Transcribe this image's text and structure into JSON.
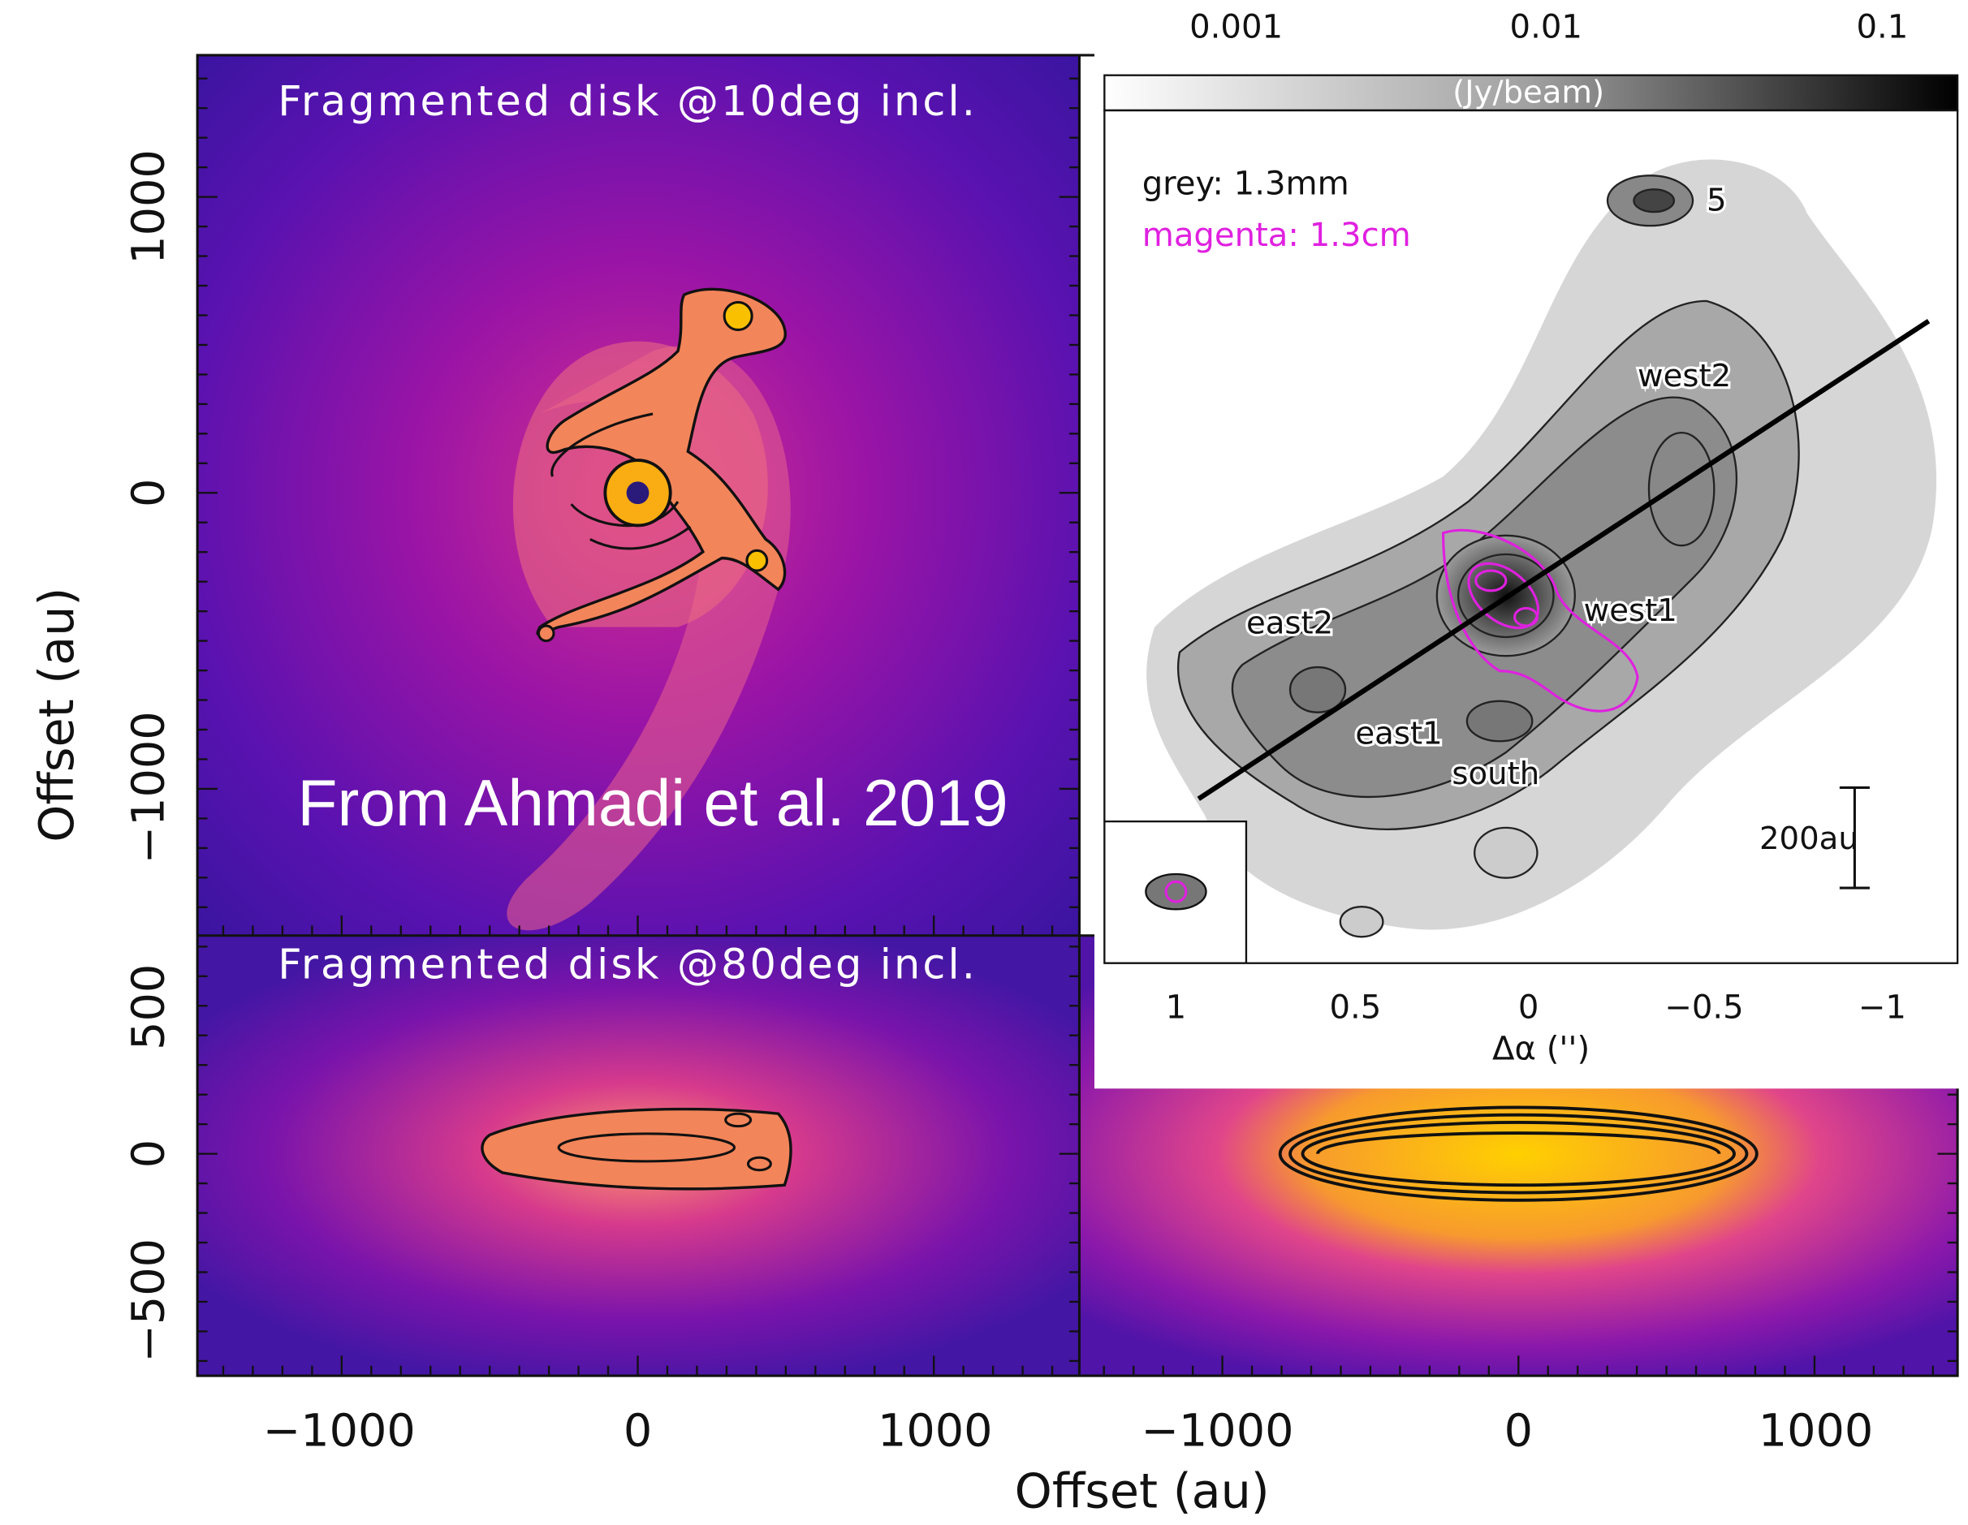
{
  "figure": {
    "panels": {
      "face_on": {
        "title": "Fragmented disk @10deg incl.",
        "annotation": "From Ahmadi et al. 2019",
        "y_ticks": [
          "1000",
          "0",
          "−1000"
        ]
      },
      "edge_on": {
        "title": "Fragmented disk @80deg incl.",
        "y_ticks": [
          "500",
          "0",
          "−500"
        ]
      }
    },
    "y_axis_label": "Offset (au)",
    "x_axis_label": "Offset (au)",
    "x_ticks": [
      "−1000",
      "0",
      "1000",
      "−1000",
      "0",
      "1000"
    ],
    "inset": {
      "colorbar_ticks": [
        "0.001",
        "0.01",
        "0.1"
      ],
      "colorbar_label": "(Jy/beam)",
      "legend": [
        "grey: 1.3mm",
        "magenta: 1.3cm"
      ],
      "sources": [
        "5",
        "west2",
        "west1",
        "east2",
        "east1",
        "south"
      ],
      "scale_bar": "200au",
      "x_ticks": [
        "1",
        "0.5",
        "0",
        "−0.5",
        "−1"
      ],
      "x_axis_label": "Δα ('')"
    }
  }
}
